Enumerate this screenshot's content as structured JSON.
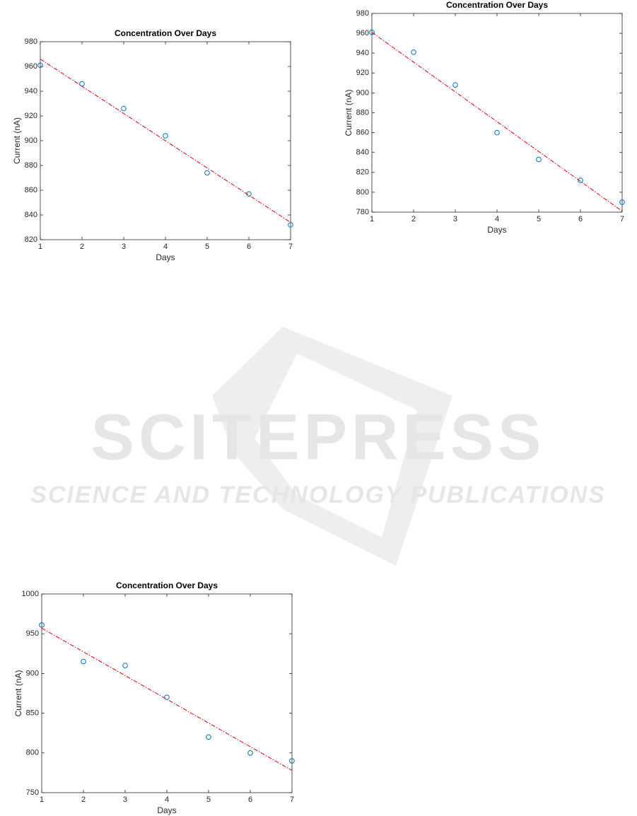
{
  "chart_data": [
    {
      "type": "scatter",
      "title": "Concentration Over Days",
      "xlabel": "Days",
      "ylabel": "Current (nA)",
      "x": [
        1,
        2,
        3,
        4,
        5,
        6,
        7
      ],
      "xlim": [
        1,
        7
      ],
      "xticks": [
        1,
        2,
        3,
        4,
        5,
        6,
        7
      ],
      "ylim": [
        820,
        980
      ],
      "yticks": [
        820,
        840,
        860,
        880,
        900,
        920,
        940,
        960,
        980
      ],
      "series": [
        {
          "color": "#0072bd",
          "marker": "circle",
          "values": [
            961,
            946,
            926,
            904,
            874,
            857,
            832
          ]
        },
        {
          "color": "#e8000b",
          "line": "dash-dot",
          "x": [
            1,
            7
          ],
          "values": [
            966,
            834
          ]
        }
      ]
    },
    {
      "type": "scatter",
      "title": "Concentration Over Days",
      "xlabel": "Days",
      "ylabel": "Current (nA)",
      "x": [
        1,
        2,
        3,
        4,
        5,
        6,
        7
      ],
      "xlim": [
        1,
        7
      ],
      "xticks": [
        1,
        2,
        3,
        4,
        5,
        6,
        7
      ],
      "ylim": [
        780,
        980
      ],
      "yticks": [
        780,
        800,
        820,
        840,
        860,
        880,
        900,
        920,
        940,
        960,
        980
      ],
      "series": [
        {
          "color": "#0072bd",
          "marker": "circle",
          "values": [
            961,
            941,
            908,
            860,
            833,
            812,
            790
          ]
        },
        {
          "color": "#e8000b",
          "line": "dash-dot",
          "x": [
            1,
            7
          ],
          "values": [
            961,
            781
          ]
        }
      ]
    },
    {
      "type": "scatter",
      "title": "Concentration Over Days",
      "xlabel": "Days",
      "ylabel": "Current (nA)",
      "x": [
        1,
        2,
        3,
        4,
        5,
        6,
        7
      ],
      "xlim": [
        1,
        7
      ],
      "xticks": [
        1,
        2,
        3,
        4,
        5,
        6,
        7
      ],
      "ylim": [
        750,
        1000
      ],
      "yticks": [
        750,
        800,
        850,
        900,
        950,
        1000
      ],
      "series": [
        {
          "color": "#0072bd",
          "marker": "circle",
          "values": [
            961,
            915,
            910,
            870,
            820,
            800,
            790
          ]
        },
        {
          "color": "#e8000b",
          "line": "dash-dot",
          "x": [
            1,
            7
          ],
          "values": [
            957,
            778
          ]
        }
      ]
    }
  ],
  "watermark": {
    "title": "SCITEPRESS",
    "subtitle": "SCIENCE AND TECHNOLOGY PUBLICATIONS"
  }
}
